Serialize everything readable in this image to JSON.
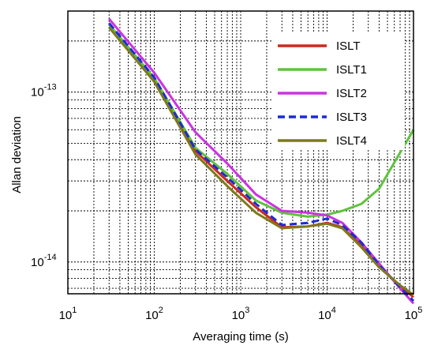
{
  "chart_data": {
    "type": "line",
    "title": "",
    "xlabel": "Averaging time (s)",
    "ylabel": "Allan deviation",
    "xscale": "log",
    "yscale": "log",
    "xlim": [
      10,
      100000
    ],
    "ylim": [
      6.5e-15,
      3e-13
    ],
    "grid": true,
    "legend_position": "top-right",
    "x_ticks": [
      {
        "value": 10,
        "base": "10",
        "exp": "1"
      },
      {
        "value": 100,
        "base": "10",
        "exp": "2"
      },
      {
        "value": 1000,
        "base": "10",
        "exp": "3"
      },
      {
        "value": 10000,
        "base": "10",
        "exp": "4"
      },
      {
        "value": 100000,
        "base": "10",
        "exp": "5"
      }
    ],
    "y_ticks": [
      {
        "value": 1e-14,
        "base": "10",
        "exp": "-14"
      },
      {
        "value": 1e-13,
        "base": "10",
        "exp": "-13"
      }
    ],
    "series": [
      {
        "name": "ISLT",
        "color": "#cc2a1e",
        "dash": "solid",
        "x": [
          30,
          100,
          300,
          700,
          1500,
          3000,
          6000,
          10000,
          15000,
          25000,
          40000,
          70000,
          100000
        ],
        "y": [
          2.5e-13,
          1.2e-13,
          4.5e-14,
          3e-14,
          2.1e-14,
          1.6e-14,
          1.62e-14,
          1.7e-14,
          1.6e-14,
          1.25e-14,
          9.5e-15,
          7.2e-15,
          6.2e-15
        ]
      },
      {
        "name": "ISLT1",
        "color": "#5ec33c",
        "dash": "solid",
        "x": [
          30,
          100,
          300,
          700,
          1500,
          3000,
          6000,
          10000,
          15000,
          25000,
          40000,
          70000,
          100000
        ],
        "y": [
          2.5e-13,
          1.21e-13,
          4.7e-14,
          3.3e-14,
          2.3e-14,
          1.95e-14,
          1.85e-14,
          1.9e-14,
          2e-14,
          2.2e-14,
          2.7e-14,
          4.4e-14,
          6e-14
        ]
      },
      {
        "name": "ISLT2",
        "color": "#cc33e0",
        "dash": "solid",
        "x": [
          30,
          100,
          300,
          700,
          1500,
          3000,
          6000,
          10000,
          15000,
          25000,
          40000,
          70000,
          100000
        ],
        "y": [
          2.7e-13,
          1.3e-13,
          5.8e-14,
          3.8e-14,
          2.5e-14,
          2e-14,
          1.95e-14,
          1.88e-14,
          1.7e-14,
          1.3e-14,
          9.8e-15,
          7e-15,
          5.7e-15
        ]
      },
      {
        "name": "ISLT3",
        "color": "#1c2bd6",
        "dash": "dashed",
        "x": [
          30,
          100,
          300,
          700,
          1500,
          3000,
          6000,
          10000,
          15000,
          25000,
          40000,
          70000,
          100000
        ],
        "y": [
          2.55e-13,
          1.22e-13,
          4.6e-14,
          3.15e-14,
          2.2e-14,
          1.65e-14,
          1.7e-14,
          1.8e-14,
          1.65e-14,
          1.3e-14,
          9.6e-15,
          7.1e-15,
          5.9e-15
        ]
      },
      {
        "name": "ISLT4",
        "color": "#7d7a1c",
        "dash": "solid",
        "x": [
          30,
          100,
          300,
          700,
          1500,
          3000,
          6000,
          10000,
          15000,
          25000,
          40000,
          70000,
          100000
        ],
        "y": [
          2.4e-13,
          1.15e-13,
          4.3e-14,
          2.8e-14,
          1.95e-14,
          1.58e-14,
          1.62e-14,
          1.68e-14,
          1.58e-14,
          1.22e-14,
          9.3e-15,
          7.3e-15,
          6.4e-15
        ]
      }
    ]
  }
}
